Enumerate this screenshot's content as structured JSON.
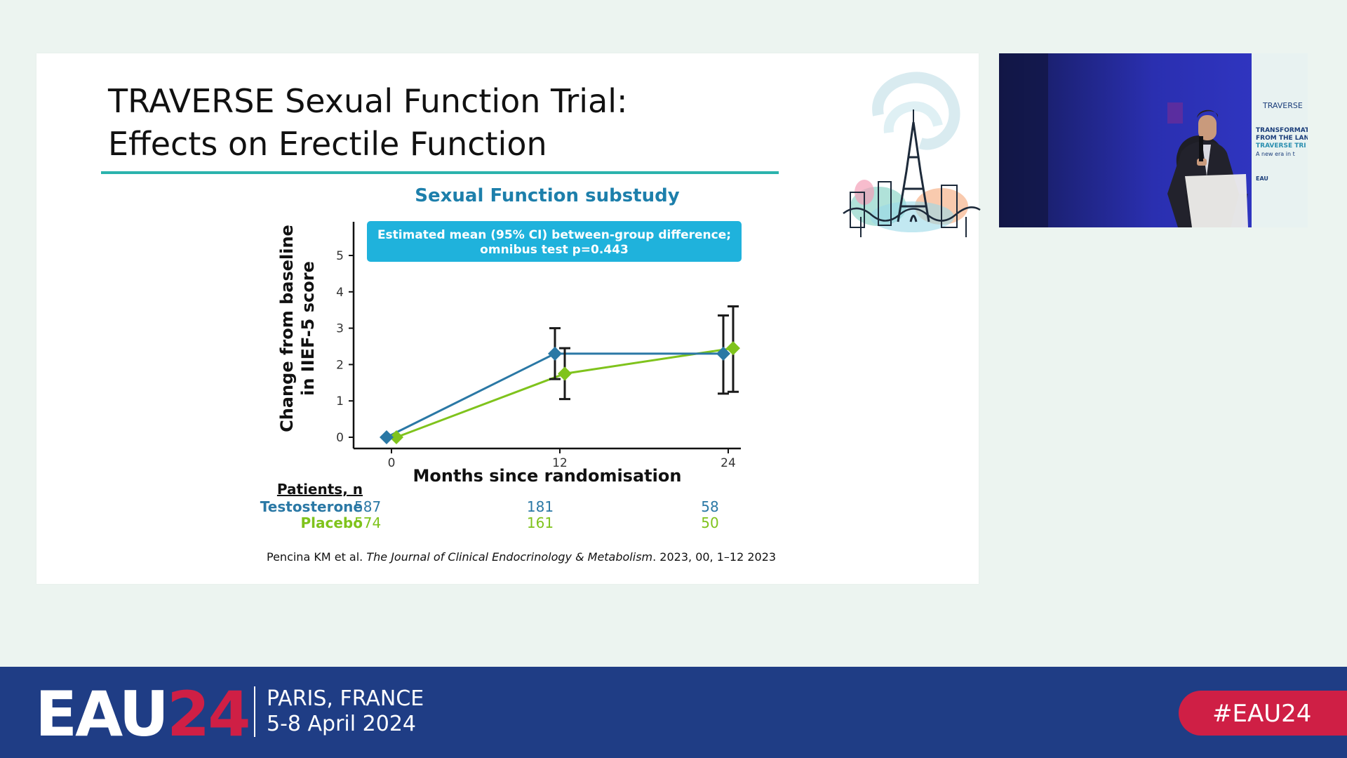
{
  "slide": {
    "title_lines": [
      "TRAVERSE Sexual Function Trial:",
      "Effects on Erectile Function"
    ],
    "subtitle": "Sexual Function substudy",
    "annotation_lines": [
      "Estimated mean (95% CI) between-group difference;",
      "omnibus test p=0.443"
    ],
    "patients_header": "Patients, n",
    "patients": [
      {
        "group": "Testosterone",
        "counts": [
          "587",
          "181",
          "58"
        ],
        "color": "#2a78a5"
      },
      {
        "group": "Placebo",
        "counts": [
          "574",
          "161",
          "50"
        ],
        "color": "#7fc31c"
      }
    ],
    "citation_prefix": "Pencina KM et al. ",
    "citation_journal": "The Journal of Clinical Endocrinology & Metabolism",
    "citation_suffix": ". 2023, 00, 1–12 2023"
  },
  "chart_data": {
    "type": "line",
    "title": "Sexual Function substudy",
    "xlabel": "Months since randomisation",
    "ylabel_lines": [
      "Change from baseline",
      "in IIEF-5 score"
    ],
    "x": [
      0,
      12,
      24
    ],
    "x_ticks": [
      "0",
      "12",
      "24"
    ],
    "y_ticks": [
      "0",
      "1",
      "2",
      "3",
      "4",
      "5"
    ],
    "ylim": [
      0,
      5
    ],
    "series": [
      {
        "name": "Testosterone",
        "color": "#2a78a5",
        "values": [
          0,
          2.3,
          2.3
        ],
        "ci_low": [
          null,
          1.6,
          1.2
        ],
        "ci_high": [
          null,
          3.0,
          3.35
        ]
      },
      {
        "name": "Placebo",
        "color": "#7fc31c",
        "values": [
          0,
          1.75,
          2.45
        ],
        "ci_low": [
          null,
          1.05,
          1.25
        ],
        "ci_high": [
          null,
          2.45,
          3.6
        ]
      }
    ]
  },
  "footer": {
    "logo_text": "EAU",
    "logo_year": "24",
    "location": "PARIS, FRANCE",
    "dates": "5-8 April 2024",
    "hashtag": "#EAU24",
    "colors": {
      "bar": "#1f3d85",
      "accent": "#cf1f45"
    }
  },
  "video": {
    "backdrop_lines": [
      "TRAVERSE",
      "TRANSFORMAT",
      "FROM THE LAN",
      "TRAVERSE TRI",
      "A new era in t",
      "EAU"
    ]
  }
}
